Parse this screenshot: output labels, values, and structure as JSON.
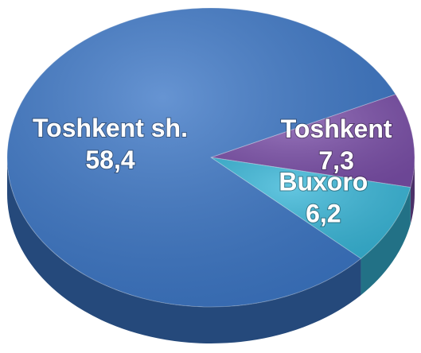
{
  "chart_data": {
    "type": "pie",
    "categories": [
      "Toshkent",
      "Buxoro",
      "Toshkent sh."
    ],
    "values": [
      7.3,
      6.2,
      58.4
    ],
    "value_labels": [
      "7,3",
      "6,2",
      "58,4"
    ],
    "colors": [
      "#7b4fa9",
      "#37b6d8",
      "#3b76c6"
    ],
    "three_d": true
  }
}
